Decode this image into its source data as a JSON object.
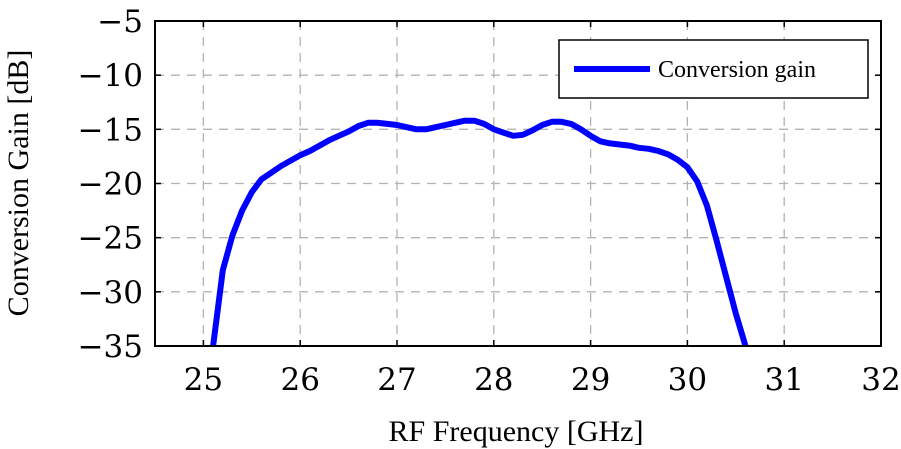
{
  "chart_data": {
    "type": "line",
    "xlabel": "RF Frequency [GHz]",
    "ylabel": "Conversion Gain [dB]",
    "xlim": [
      24.5,
      32
    ],
    "ylim": [
      -35,
      -5
    ],
    "x_ticks": [
      "25",
      "26",
      "27",
      "28",
      "29",
      "30",
      "31",
      "32"
    ],
    "y_ticks": [
      "−5",
      "−10",
      "−15",
      "−20",
      "−25",
      "−30",
      "−35"
    ],
    "grid": true,
    "legend_position": "top-right",
    "series": [
      {
        "name": "Conversion gain",
        "color": "#0000ff",
        "x": [
          25.1,
          25.2,
          25.3,
          25.4,
          25.5,
          25.6,
          25.7,
          25.8,
          25.9,
          26.0,
          26.1,
          26.2,
          26.3,
          26.4,
          26.5,
          26.6,
          26.7,
          26.8,
          26.9,
          27.0,
          27.1,
          27.2,
          27.3,
          27.4,
          27.5,
          27.6,
          27.7,
          27.8,
          27.9,
          28.0,
          28.1,
          28.2,
          28.3,
          28.4,
          28.5,
          28.6,
          28.7,
          28.8,
          28.9,
          29.0,
          29.1,
          29.2,
          29.3,
          29.4,
          29.5,
          29.6,
          29.7,
          29.8,
          29.9,
          30.0,
          30.1,
          30.2,
          30.3,
          30.4,
          30.5,
          30.6
        ],
        "y": [
          -35.0,
          -28.0,
          -24.8,
          -22.5,
          -20.8,
          -19.6,
          -19.0,
          -18.4,
          -17.9,
          -17.4,
          -17.0,
          -16.5,
          -16.0,
          -15.6,
          -15.2,
          -14.7,
          -14.4,
          -14.4,
          -14.5,
          -14.6,
          -14.8,
          -15.0,
          -15.0,
          -14.8,
          -14.6,
          -14.4,
          -14.2,
          -14.2,
          -14.5,
          -15.0,
          -15.3,
          -15.6,
          -15.5,
          -15.1,
          -14.6,
          -14.3,
          -14.3,
          -14.5,
          -15.0,
          -15.6,
          -16.1,
          -16.3,
          -16.4,
          -16.5,
          -16.7,
          -16.8,
          -17.0,
          -17.3,
          -17.8,
          -18.5,
          -19.8,
          -22.0,
          -25.2,
          -28.6,
          -32.0,
          -35.0
        ]
      }
    ]
  }
}
